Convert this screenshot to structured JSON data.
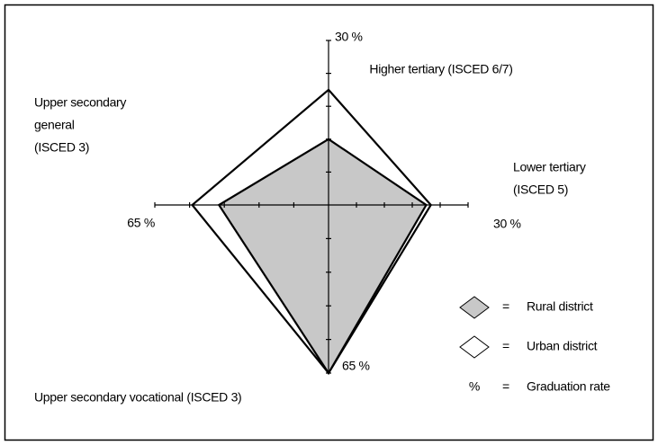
{
  "chart_data": {
    "type": "radar",
    "axes": [
      {
        "label": [
          "Higher tertiary (ISCED 6/7)"
        ],
        "lim": [
          0,
          30
        ],
        "ticks": [
          6,
          12,
          18,
          24,
          {
            "value": 30,
            "label": "30 %"
          }
        ]
      },
      {
        "label": [
          "Lower tertiary",
          "(ISCED 5)"
        ],
        "lim": [
          0,
          30
        ],
        "ticks": [
          6,
          12,
          18,
          24,
          {
            "value": 30,
            "label": "30 %"
          }
        ]
      },
      {
        "label": [
          "Upper secondary vocational (ISCED 3)"
        ],
        "lim": [
          0,
          65
        ],
        "ticks": [
          13,
          26,
          39,
          52,
          {
            "value": 65,
            "label": "65 %"
          }
        ]
      },
      {
        "label": [
          "Upper secondary",
          "general",
          "(ISCED 3)"
        ],
        "lim": [
          0,
          65
        ],
        "ticks": [
          13,
          26,
          39,
          52,
          {
            "value": 65,
            "label": "65 %"
          }
        ]
      }
    ],
    "series": [
      {
        "name": "Urban district",
        "color": "#ffffff",
        "values": [
          21,
          22,
          65,
          51
        ]
      },
      {
        "name": "Rural district",
        "color": "#c8c8c8",
        "values": [
          12,
          21,
          65,
          41
        ]
      }
    ],
    "legend_separator": "=",
    "legend_note": {
      "symbol": "%",
      "text": "Graduation rate"
    }
  }
}
